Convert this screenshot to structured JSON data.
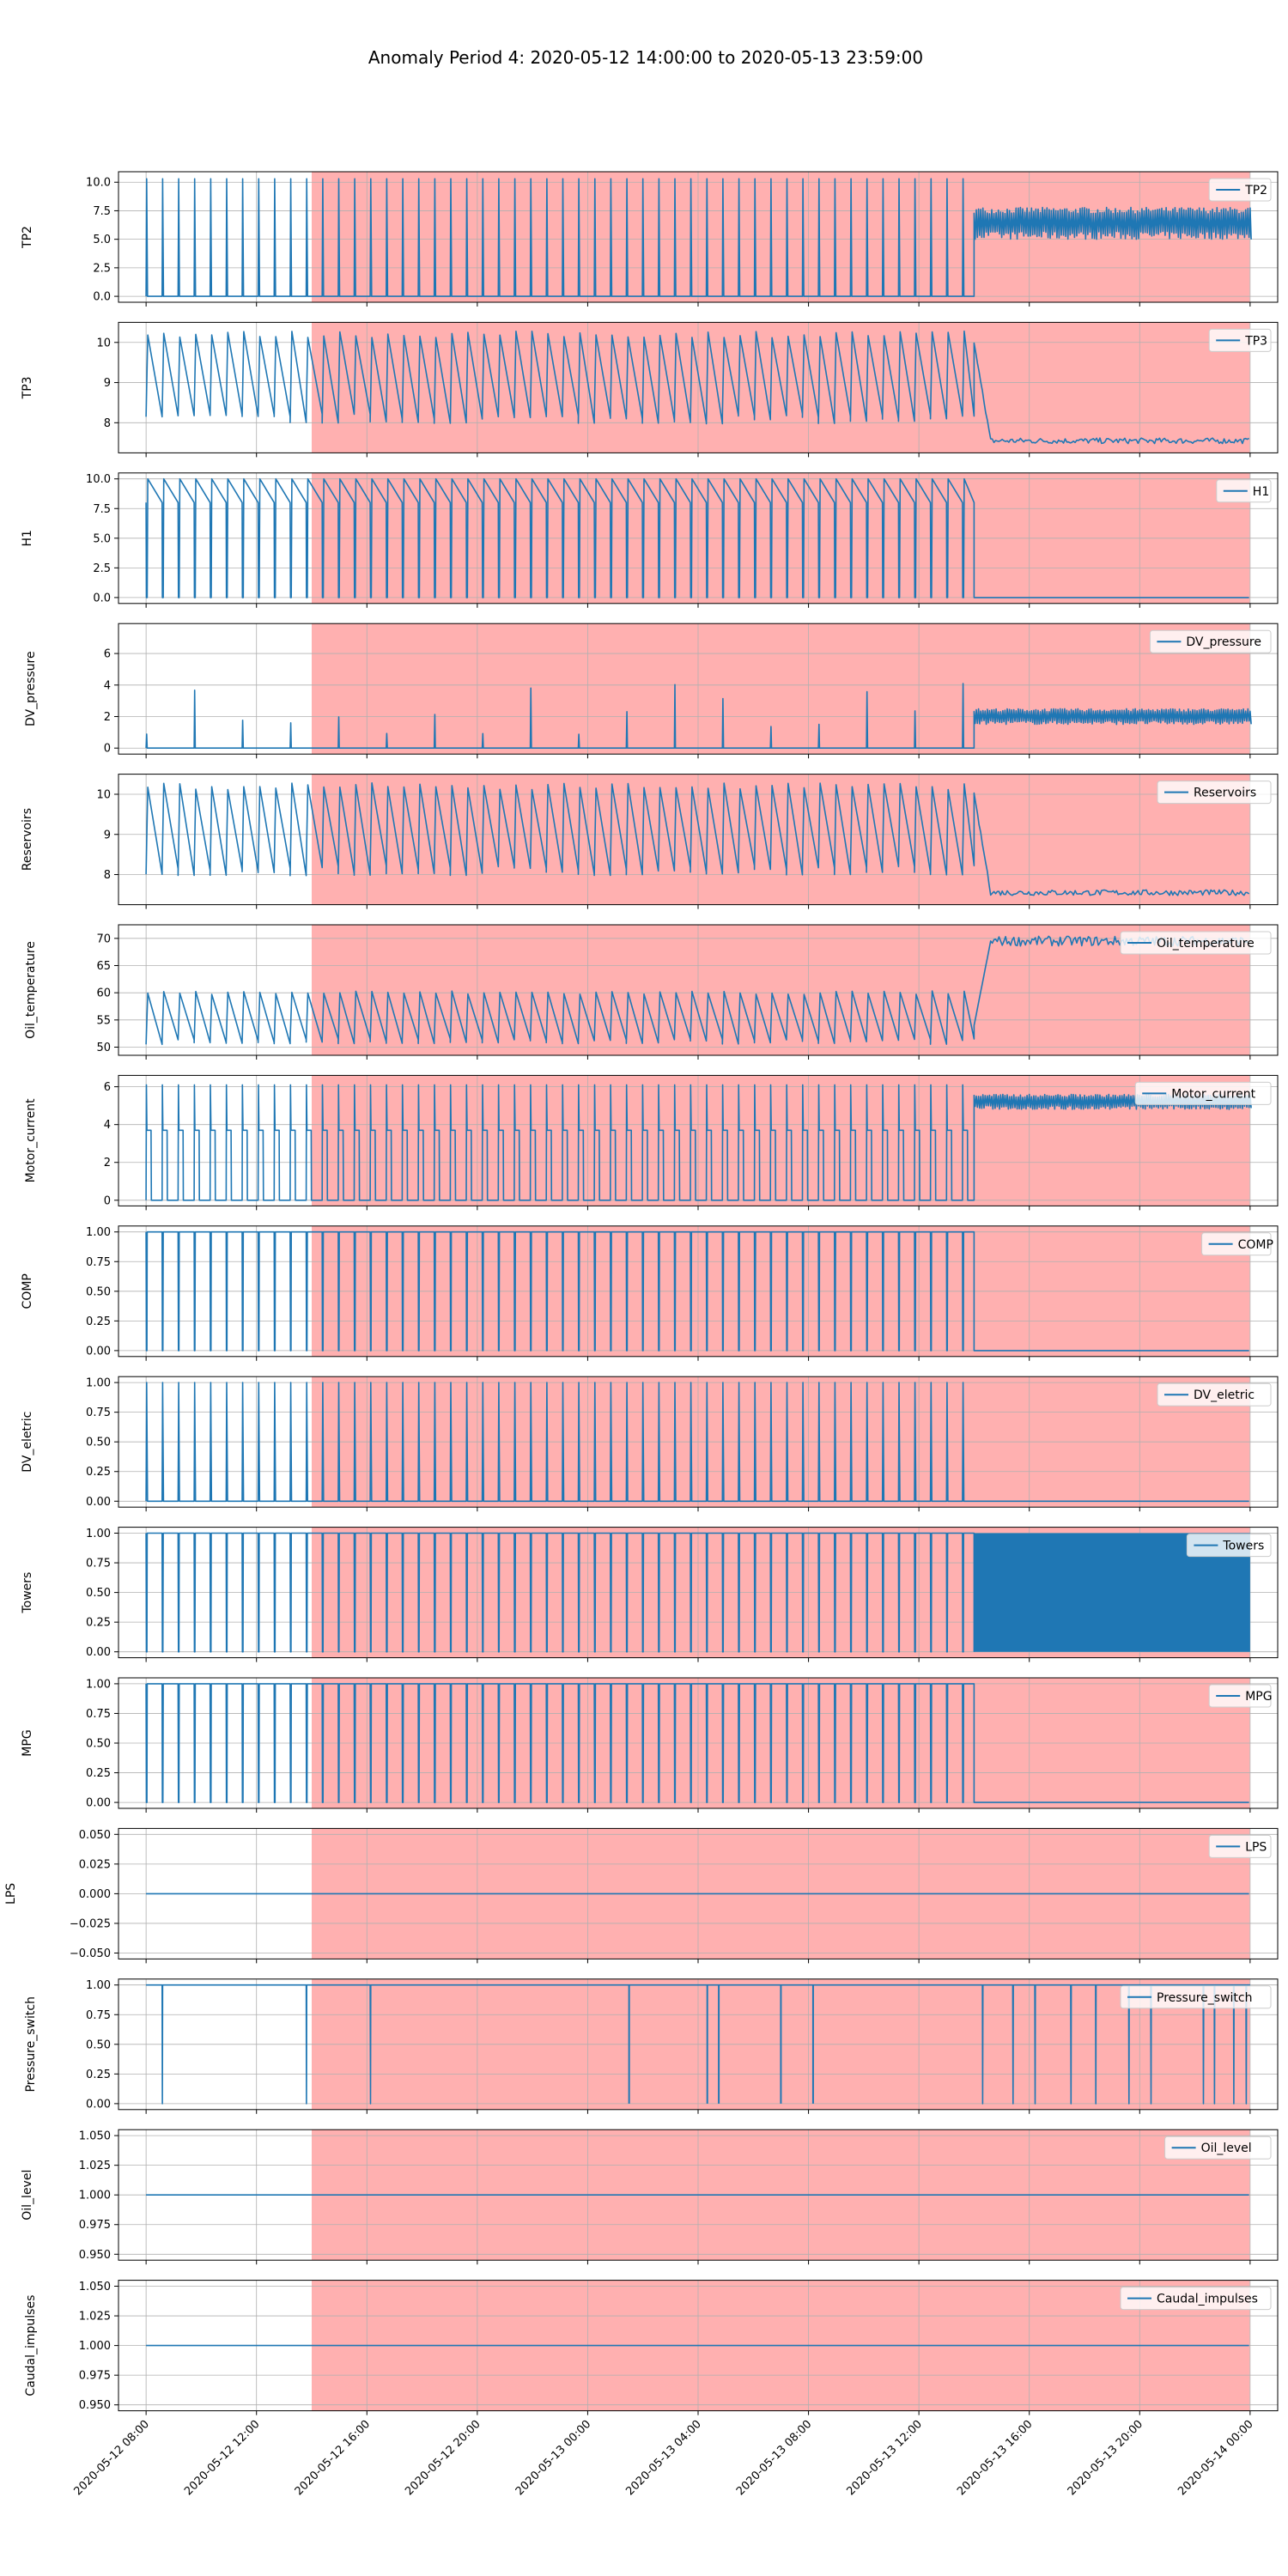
{
  "chart_data": {
    "type": "line",
    "title": "Anomaly Period 4: 2020-05-12 14:00:00 to 2020-05-13 23:59:00",
    "xlim": [
      "2020-05-12 07:00",
      "2020-05-14 01:00"
    ],
    "xticks": [
      "2020-05-12 08:00",
      "2020-05-12 12:00",
      "2020-05-12 16:00",
      "2020-05-12 20:00",
      "2020-05-13 00:00",
      "2020-05-13 04:00",
      "2020-05-13 08:00",
      "2020-05-13 12:00",
      "2020-05-13 16:00",
      "2020-05-13 20:00",
      "2020-05-14 00:00"
    ],
    "x_start": "2020-05-12 08:00",
    "x_end": "2020-05-14 00:00",
    "anomaly_span": {
      "start": "2020-05-12 14:00",
      "end": "2020-05-13 23:59",
      "color": "#ffb0b0"
    },
    "regime_change": "2020-05-13 14:00",
    "line_color": "#1f77b4",
    "grid": true,
    "legend_position": "top-right",
    "panels": [
      {
        "name": "TP2",
        "ylabel": "TP2",
        "ylim": [
          -0.52,
          10.92
        ],
        "yticks": [
          "0.0",
          "2.5",
          "5.0",
          "7.5",
          "10.0"
        ],
        "ytick_values": [
          0,
          2.5,
          5,
          7.5,
          10
        ],
        "normal": {
          "pattern": "spikes",
          "base": 0,
          "peak": 10.3
        },
        "after": {
          "pattern": "band",
          "low": 5.0,
          "high": 7.8
        }
      },
      {
        "name": "TP3",
        "ylabel": "TP3",
        "ylim": [
          7.25,
          10.5
        ],
        "yticks": [
          "8",
          "9",
          "10"
        ],
        "ytick_values": [
          8,
          9,
          10
        ],
        "normal": {
          "pattern": "sawtooth",
          "low": 8.1,
          "high": 10.2
        },
        "after": {
          "pattern": "flat",
          "level": 7.55,
          "noise": 0.07
        }
      },
      {
        "name": "H1",
        "ylabel": "H1",
        "ylim": [
          -0.5,
          10.5
        ],
        "yticks": [
          "0.0",
          "2.5",
          "5.0",
          "7.5",
          "10.0"
        ],
        "ytick_values": [
          0,
          2.5,
          5,
          7.5,
          10
        ],
        "normal": {
          "pattern": "sawtooth_drop",
          "low": 8.0,
          "high": 10.0,
          "drop": 0
        },
        "after": {
          "pattern": "flat",
          "level": 0,
          "noise": 0
        }
      },
      {
        "name": "DV_pressure",
        "ylabel": "DV_pressure",
        "ylim": [
          -0.38,
          7.9
        ],
        "yticks": [
          "0",
          "2",
          "4",
          "6"
        ],
        "ytick_values": [
          0,
          2,
          4,
          6
        ],
        "normal": {
          "pattern": "spikes_sparse",
          "base": 0,
          "peak": 2.5
        },
        "after": {
          "pattern": "band",
          "low": 1.5,
          "high": 2.5
        }
      },
      {
        "name": "Reservoirs",
        "ylabel": "Reservoirs",
        "ylim": [
          7.25,
          10.5
        ],
        "yticks": [
          "8",
          "9",
          "10"
        ],
        "ytick_values": [
          8,
          9,
          10
        ],
        "normal": {
          "pattern": "sawtooth",
          "low": 8.1,
          "high": 10.2
        },
        "after": {
          "pattern": "flat",
          "level": 7.55,
          "noise": 0.07
        }
      },
      {
        "name": "Oil_temperature",
        "ylabel": "Oil_temperature",
        "ylim": [
          48.5,
          72.5
        ],
        "yticks": [
          "50",
          "55",
          "60",
          "65",
          "70"
        ],
        "ytick_values": [
          50,
          55,
          60,
          65,
          70
        ],
        "normal": {
          "pattern": "sawtooth",
          "low": 51,
          "high": 60
        },
        "after": {
          "pattern": "flat",
          "level": 69.5,
          "noise": 0.9
        }
      },
      {
        "name": "Motor_current",
        "ylabel": "Motor_current",
        "ylim": [
          -0.3,
          6.6
        ],
        "yticks": [
          "0",
          "2",
          "4",
          "6"
        ],
        "ytick_values": [
          0,
          2,
          4,
          6
        ],
        "normal": {
          "pattern": "pulses",
          "base": 0,
          "level": 3.7,
          "peak": 6.1
        },
        "after": {
          "pattern": "band",
          "low": 4.8,
          "high": 5.6
        }
      },
      {
        "name": "COMP",
        "ylabel": "COMP",
        "ylim": [
          -0.05,
          1.05
        ],
        "yticks": [
          "0.00",
          "0.25",
          "0.50",
          "0.75",
          "1.00"
        ],
        "ytick_values": [
          0,
          0.25,
          0.5,
          0.75,
          1
        ],
        "normal": {
          "pattern": "dips",
          "base": 1,
          "dip": 0
        },
        "after": {
          "pattern": "flat",
          "level": 0,
          "noise": 0
        }
      },
      {
        "name": "DV_eletric",
        "ylabel": "DV_eletric",
        "ylim": [
          -0.05,
          1.05
        ],
        "yticks": [
          "0.00",
          "0.25",
          "0.50",
          "0.75",
          "1.00"
        ],
        "ytick_values": [
          0,
          0.25,
          0.5,
          0.75,
          1
        ],
        "normal": {
          "pattern": "spikes",
          "base": 0,
          "peak": 1
        },
        "after": {
          "pattern": "flat",
          "level": 0,
          "noise": 0
        }
      },
      {
        "name": "Towers",
        "ylabel": "Towers",
        "ylim": [
          -0.05,
          1.05
        ],
        "yticks": [
          "0.00",
          "0.25",
          "0.50",
          "0.75",
          "1.00"
        ],
        "ytick_values": [
          0,
          0.25,
          0.5,
          0.75,
          1
        ],
        "normal": {
          "pattern": "dips",
          "base": 1,
          "dip": 0
        },
        "after": {
          "pattern": "filled",
          "low": 0,
          "high": 1
        }
      },
      {
        "name": "MPG",
        "ylabel": "MPG",
        "ylim": [
          -0.05,
          1.05
        ],
        "yticks": [
          "0.00",
          "0.25",
          "0.50",
          "0.75",
          "1.00"
        ],
        "ytick_values": [
          0,
          0.25,
          0.5,
          0.75,
          1
        ],
        "normal": {
          "pattern": "dips",
          "base": 1,
          "dip": 0
        },
        "after": {
          "pattern": "flat",
          "level": 0,
          "noise": 0
        }
      },
      {
        "name": "LPS",
        "ylabel": "LPS",
        "ylim": [
          -0.055,
          0.055
        ],
        "yticks": [
          "−0.050",
          "−0.025",
          "0.000",
          "0.025",
          "0.050"
        ],
        "ytick_values": [
          -0.05,
          -0.025,
          0,
          0.025,
          0.05
        ],
        "normal": {
          "pattern": "flat",
          "level": 0
        },
        "after": {
          "pattern": "flat",
          "level": 0,
          "noise": 0
        }
      },
      {
        "name": "Pressure_switch",
        "ylabel": "Pressure_switch",
        "ylim": [
          -0.05,
          1.05
        ],
        "yticks": [
          "0.00",
          "0.25",
          "0.50",
          "0.75",
          "1.00"
        ],
        "ytick_values": [
          0,
          0.25,
          0.5,
          0.75,
          1
        ],
        "normal": {
          "pattern": "rare_dips",
          "base": 1,
          "dip": 0
        },
        "after": {
          "pattern": "rare_dips",
          "base": 1,
          "dip": 0
        }
      },
      {
        "name": "Oil_level",
        "ylabel": "Oil_level",
        "ylim": [
          0.945,
          1.055
        ],
        "yticks": [
          "0.950",
          "0.975",
          "1.000",
          "1.025",
          "1.050"
        ],
        "ytick_values": [
          0.95,
          0.975,
          1,
          1.025,
          1.05
        ],
        "normal": {
          "pattern": "flat",
          "level": 1
        },
        "after": {
          "pattern": "flat",
          "level": 1,
          "noise": 0
        }
      },
      {
        "name": "Caudal_impulses",
        "ylabel": "Caudal_impulses",
        "ylim": [
          0.945,
          1.055
        ],
        "yticks": [
          "0.950",
          "0.975",
          "1.000",
          "1.025",
          "1.050"
        ],
        "ytick_values": [
          0.95,
          0.975,
          1,
          1.025,
          1.05
        ],
        "normal": {
          "pattern": "flat",
          "level": 1
        },
        "after": {
          "pattern": "flat",
          "level": 1,
          "noise": 0
        }
      }
    ]
  }
}
